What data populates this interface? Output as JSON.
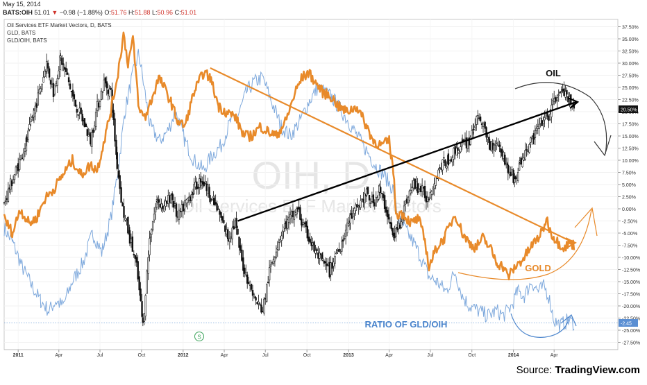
{
  "header": {
    "date": "May 15, 2014",
    "symbol": "BATS:OIH",
    "last": "51.01",
    "change_arrow": "▼",
    "change": "−0.98 (−1.88%)",
    "open_label": "O:",
    "open": "51.76",
    "high_label": "H:",
    "high": "51.88",
    "low_label": "L:",
    "low": "50.96",
    "close_label": "C:",
    "close": "51.01"
  },
  "legend": [
    "Oil Services ETF Market Vectors, D, BATS",
    "GLD, BATS",
    "GLD/OIH, BATS"
  ],
  "watermark": {
    "main": "OIH, D",
    "sub": "Oil Services ETF Market Vectors"
  },
  "annotations": {
    "oil": "OIL",
    "gold": "GOLD",
    "ratio": "RATIO OF GLD/OIH",
    "event_marker": "S"
  },
  "source": {
    "prefix": "Source: ",
    "brand": "TradingView.com"
  },
  "colors": {
    "oih": "#111111",
    "gld": "#e88a2a",
    "ratio": "#6f9fd8",
    "trendline_gold": "#e88a2a",
    "trendline_oil": "#000000",
    "annotation_oil": "#111111",
    "annotation_gold": "#e88a2a",
    "annotation_ratio": "#4a84cc",
    "last_price_badge": "#111111",
    "ratio_badge": "#5b8fd3"
  },
  "chart_data": {
    "type": "line",
    "title": "Oil Services ETF Market Vectors, D, BATS",
    "x_ticks": [
      "2011",
      "Apr",
      "Jul",
      "Oct",
      "2012",
      "Apr",
      "Jul",
      "Oct",
      "2013",
      "Apr",
      "Jul",
      "Oct",
      "2014",
      "Apr"
    ],
    "x_range": [
      "2010-12-01",
      "2014-08-20"
    ],
    "y_ticks": [
      "-27.50%",
      "-25.00%",
      "-22.50%",
      "-20.00%",
      "-17.50%",
      "-15.00%",
      "-12.50%",
      "-10.00%",
      "-7.50%",
      "-5.00%",
      "-2.50%",
      "0.00%",
      "2.50%",
      "5.00%",
      "7.50%",
      "10.00%",
      "12.50%",
      "15.00%",
      "17.50%",
      "20.00%",
      "22.50%",
      "25.00%",
      "27.50%",
      "30.00%",
      "32.50%",
      "35.00%",
      "37.50%"
    ],
    "y_range": [
      -29,
      39
    ],
    "y_unit": "%",
    "last_value_labels": {
      "oih": "20.50%",
      "ratio": "-2.45"
    },
    "series": [
      {
        "name": "Oil Services ETF Market Vectors, D, BATS",
        "style": "candlestick",
        "points": [
          [
            "2010-12-01",
            1
          ],
          [
            "2010-12-15",
            5
          ],
          [
            "2011-01-01",
            9
          ],
          [
            "2011-01-20",
            14
          ],
          [
            "2011-02-05",
            20
          ],
          [
            "2011-02-20",
            25
          ],
          [
            "2011-03-05",
            30
          ],
          [
            "2011-03-20",
            24
          ],
          [
            "2011-04-05",
            31
          ],
          [
            "2011-04-20",
            27
          ],
          [
            "2011-05-05",
            22
          ],
          [
            "2011-05-25",
            18
          ],
          [
            "2011-06-10",
            14
          ],
          [
            "2011-06-25",
            21
          ],
          [
            "2011-07-10",
            26
          ],
          [
            "2011-07-25",
            24
          ],
          [
            "2011-08-08",
            9
          ],
          [
            "2011-08-20",
            0
          ],
          [
            "2011-09-05",
            -6
          ],
          [
            "2011-09-20",
            -12
          ],
          [
            "2011-10-04",
            -24
          ],
          [
            "2011-10-20",
            -5
          ],
          [
            "2011-11-05",
            2
          ],
          [
            "2011-11-20",
            0
          ],
          [
            "2011-12-05",
            3
          ],
          [
            "2011-12-20",
            -2
          ],
          [
            "2012-01-05",
            1
          ],
          [
            "2012-01-25",
            4
          ],
          [
            "2012-02-10",
            6
          ],
          [
            "2012-02-25",
            4
          ],
          [
            "2012-03-10",
            1
          ],
          [
            "2012-03-25",
            -2
          ],
          [
            "2012-04-10",
            -6
          ],
          [
            "2012-04-25",
            -3
          ],
          [
            "2012-05-10",
            -11
          ],
          [
            "2012-05-25",
            -15
          ],
          [
            "2012-06-10",
            -19
          ],
          [
            "2012-06-25",
            -21
          ],
          [
            "2012-07-10",
            -13
          ],
          [
            "2012-07-25",
            -8
          ],
          [
            "2012-08-10",
            -4
          ],
          [
            "2012-08-25",
            -2
          ],
          [
            "2012-09-10",
            0
          ],
          [
            "2012-09-20",
            -3
          ],
          [
            "2012-10-05",
            -6
          ],
          [
            "2012-10-20",
            -9
          ],
          [
            "2012-11-05",
            -11
          ],
          [
            "2012-11-20",
            -13
          ],
          [
            "2012-12-05",
            -9
          ],
          [
            "2012-12-20",
            -6
          ],
          [
            "2013-01-05",
            -2
          ],
          [
            "2013-01-25",
            1
          ],
          [
            "2013-02-10",
            3
          ],
          [
            "2013-02-25",
            1
          ],
          [
            "2013-03-10",
            4
          ],
          [
            "2013-03-25",
            0
          ],
          [
            "2013-04-10",
            -6
          ],
          [
            "2013-04-25",
            -3
          ],
          [
            "2013-05-10",
            2
          ],
          [
            "2013-05-25",
            5
          ],
          [
            "2013-06-10",
            4
          ],
          [
            "2013-06-25",
            2
          ],
          [
            "2013-07-10",
            6
          ],
          [
            "2013-07-25",
            9
          ],
          [
            "2013-08-10",
            10
          ],
          [
            "2013-08-25",
            12
          ],
          [
            "2013-09-10",
            13
          ],
          [
            "2013-09-25",
            14
          ],
          [
            "2013-10-05",
            17
          ],
          [
            "2013-10-20",
            19
          ],
          [
            "2013-10-30",
            16
          ],
          [
            "2013-11-10",
            13
          ],
          [
            "2013-11-25",
            14
          ],
          [
            "2013-12-10",
            11
          ],
          [
            "2013-12-20",
            8
          ],
          [
            "2014-01-05",
            6
          ],
          [
            "2014-01-15",
            9
          ],
          [
            "2014-01-30",
            12
          ],
          [
            "2014-02-15",
            15
          ],
          [
            "2014-03-05",
            18
          ],
          [
            "2014-03-20",
            19
          ],
          [
            "2014-04-05",
            23
          ],
          [
            "2014-04-20",
            24
          ],
          [
            "2014-05-05",
            22
          ],
          [
            "2014-05-15",
            20.5
          ]
        ]
      },
      {
        "name": "GLD, BATS",
        "points": [
          [
            "2010-12-01",
            -2
          ],
          [
            "2010-12-20",
            -5
          ],
          [
            "2011-01-05",
            0
          ],
          [
            "2011-01-25",
            -3
          ],
          [
            "2011-02-10",
            -2
          ],
          [
            "2011-03-01",
            2
          ],
          [
            "2011-03-20",
            4
          ],
          [
            "2011-04-10",
            7
          ],
          [
            "2011-05-01",
            10
          ],
          [
            "2011-05-20",
            7
          ],
          [
            "2011-06-10",
            9
          ],
          [
            "2011-06-25",
            8
          ],
          [
            "2011-07-10",
            14
          ],
          [
            "2011-07-25",
            20
          ],
          [
            "2011-08-10",
            28
          ],
          [
            "2011-08-22",
            36
          ],
          [
            "2011-09-01",
            30
          ],
          [
            "2011-09-12",
            35
          ],
          [
            "2011-09-26",
            20
          ],
          [
            "2011-10-10",
            19
          ],
          [
            "2011-10-25",
            23
          ],
          [
            "2011-11-08",
            27
          ],
          [
            "2011-11-20",
            25
          ],
          [
            "2011-12-05",
            22
          ],
          [
            "2011-12-20",
            18
          ],
          [
            "2012-01-05",
            17
          ],
          [
            "2012-01-25",
            24
          ],
          [
            "2012-02-15",
            28
          ],
          [
            "2012-03-01",
            27
          ],
          [
            "2012-03-20",
            21
          ],
          [
            "2012-04-05",
            20
          ],
          [
            "2012-04-25",
            19
          ],
          [
            "2012-05-15",
            15
          ],
          [
            "2012-06-01",
            15
          ],
          [
            "2012-06-20",
            17
          ],
          [
            "2012-07-05",
            16
          ],
          [
            "2012-07-25",
            15
          ],
          [
            "2012-08-15",
            18
          ],
          [
            "2012-09-05",
            24
          ],
          [
            "2012-09-20",
            27
          ],
          [
            "2012-10-05",
            28
          ],
          [
            "2012-10-20",
            26
          ],
          [
            "2012-11-05",
            24
          ],
          [
            "2012-11-25",
            23
          ],
          [
            "2012-12-10",
            21
          ],
          [
            "2012-12-28",
            20
          ],
          [
            "2013-01-20",
            21
          ],
          [
            "2013-02-10",
            17
          ],
          [
            "2013-02-25",
            14
          ],
          [
            "2013-03-15",
            13
          ],
          [
            "2013-04-01",
            14
          ],
          [
            "2013-04-10",
            8
          ],
          [
            "2013-04-16",
            -1
          ],
          [
            "2013-05-01",
            -1
          ],
          [
            "2013-05-20",
            -3
          ],
          [
            "2013-06-05",
            -2
          ],
          [
            "2013-06-20",
            -7
          ],
          [
            "2013-06-28",
            -12
          ],
          [
            "2013-07-15",
            -8
          ],
          [
            "2013-08-01",
            -6
          ],
          [
            "2013-08-25",
            -1
          ],
          [
            "2013-09-10",
            -5
          ],
          [
            "2013-09-25",
            -7
          ],
          [
            "2013-10-10",
            -8
          ],
          [
            "2013-10-25",
            -6
          ],
          [
            "2013-11-10",
            -8
          ],
          [
            "2013-11-25",
            -11
          ],
          [
            "2013-12-10",
            -12
          ],
          [
            "2013-12-20",
            -14
          ],
          [
            "2014-01-05",
            -12
          ],
          [
            "2014-01-25",
            -10
          ],
          [
            "2014-02-15",
            -7
          ],
          [
            "2014-03-05",
            -5
          ],
          [
            "2014-03-15",
            -2
          ],
          [
            "2014-03-25",
            -5
          ],
          [
            "2014-04-10",
            -7
          ],
          [
            "2014-04-25",
            -8
          ],
          [
            "2014-05-05",
            -7
          ],
          [
            "2014-05-15",
            -7.5
          ]
        ]
      },
      {
        "name": "GLD/OIH, BATS",
        "points": [
          [
            "2010-12-01",
            -4
          ],
          [
            "2010-12-20",
            -7
          ],
          [
            "2011-01-10",
            -12
          ],
          [
            "2011-02-01",
            -16
          ],
          [
            "2011-02-20",
            -19
          ],
          [
            "2011-03-10",
            -21
          ],
          [
            "2011-03-25",
            -19
          ],
          [
            "2011-04-10",
            -20
          ],
          [
            "2011-05-01",
            -15
          ],
          [
            "2011-05-25",
            -11
          ],
          [
            "2011-06-15",
            -5
          ],
          [
            "2011-07-05",
            -9
          ],
          [
            "2011-07-25",
            -2
          ],
          [
            "2011-08-10",
            8
          ],
          [
            "2011-08-25",
            20
          ],
          [
            "2011-09-10",
            27
          ],
          [
            "2011-09-25",
            32
          ],
          [
            "2011-10-05",
            26
          ],
          [
            "2011-10-20",
            17
          ],
          [
            "2011-11-10",
            14
          ],
          [
            "2011-11-28",
            16
          ],
          [
            "2011-12-15",
            20
          ],
          [
            "2012-01-05",
            14
          ],
          [
            "2012-01-25",
            10
          ],
          [
            "2012-02-15",
            8
          ],
          [
            "2012-03-05",
            11
          ],
          [
            "2012-03-25",
            13
          ],
          [
            "2012-04-15",
            18
          ],
          [
            "2012-05-01",
            19
          ],
          [
            "2012-05-20",
            24
          ],
          [
            "2012-06-05",
            26
          ],
          [
            "2012-06-25",
            27
          ],
          [
            "2012-07-15",
            22
          ],
          [
            "2012-08-05",
            17
          ],
          [
            "2012-08-25",
            15
          ],
          [
            "2012-09-15",
            18
          ],
          [
            "2012-10-05",
            22
          ],
          [
            "2012-10-25",
            25
          ],
          [
            "2012-11-10",
            24
          ],
          [
            "2012-11-25",
            23
          ],
          [
            "2012-12-10",
            21
          ],
          [
            "2013-01-01",
            18
          ],
          [
            "2013-01-20",
            15
          ],
          [
            "2013-02-10",
            12
          ],
          [
            "2013-03-01",
            9
          ],
          [
            "2013-03-20",
            7
          ],
          [
            "2013-04-10",
            4
          ],
          [
            "2013-04-20",
            -2
          ],
          [
            "2013-05-05",
            -4
          ],
          [
            "2013-05-25",
            -7
          ],
          [
            "2013-06-10",
            -10
          ],
          [
            "2013-06-28",
            -14
          ],
          [
            "2013-07-15",
            -15
          ],
          [
            "2013-08-05",
            -17
          ],
          [
            "2013-08-25",
            -13
          ],
          [
            "2013-09-10",
            -18
          ],
          [
            "2013-09-25",
            -20
          ],
          [
            "2013-10-15",
            -21
          ],
          [
            "2013-11-05",
            -22
          ],
          [
            "2013-11-25",
            -21
          ],
          [
            "2013-12-10",
            -22
          ],
          [
            "2013-12-28",
            -20
          ],
          [
            "2014-01-10",
            -17
          ],
          [
            "2014-01-25",
            -18
          ],
          [
            "2014-02-10",
            -15
          ],
          [
            "2014-02-25",
            -17
          ],
          [
            "2014-03-10",
            -16
          ],
          [
            "2014-03-20",
            -18
          ],
          [
            "2014-04-01",
            -23
          ],
          [
            "2014-04-15",
            -24
          ],
          [
            "2014-05-01",
            -23
          ],
          [
            "2014-05-15",
            -23.5
          ]
        ]
      }
    ],
    "trendlines": [
      {
        "name": "gold-trendline",
        "from": [
          "2012-03-01",
          29
        ],
        "to": [
          "2014-05-15",
          -7
        ]
      },
      {
        "name": "oil-trendline",
        "from": [
          "2012-05-01",
          -2.5
        ],
        "to": [
          "2014-05-20",
          22
        ]
      }
    ]
  }
}
